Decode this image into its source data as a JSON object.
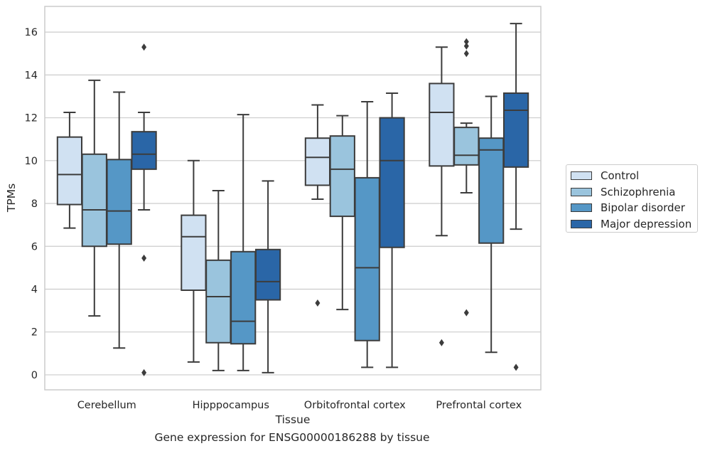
{
  "chart_data": {
    "type": "box",
    "caption": "Gene expression for ENSG00000186288 by tissue",
    "xlabel": "Tissue",
    "ylabel": "TPMs",
    "ylim": [
      -0.7,
      17.2
    ],
    "yticks": [
      0,
      2,
      4,
      6,
      8,
      10,
      12,
      14,
      16
    ],
    "grid": "horizontal",
    "legend_position": "right-outside",
    "categories": [
      "Cerebellum",
      "Hipppocampus",
      "Orbitofrontal cortex",
      "Prefrontal cortex"
    ],
    "series": [
      {
        "name": "Control",
        "color": "#d0e1f2",
        "boxes": [
          {
            "whislo": 6.85,
            "q1": 7.95,
            "med": 9.35,
            "q3": 11.1,
            "whishi": 12.25,
            "fliers": []
          },
          {
            "whislo": 0.6,
            "q1": 3.95,
            "med": 6.45,
            "q3": 7.45,
            "whishi": 10.0,
            "fliers": []
          },
          {
            "whislo": 8.2,
            "q1": 8.85,
            "med": 10.15,
            "q3": 11.05,
            "whishi": 12.6,
            "fliers": [
              3.35
            ]
          },
          {
            "whislo": 6.5,
            "q1": 9.75,
            "med": 12.25,
            "q3": 13.6,
            "whishi": 15.3,
            "fliers": [
              1.5
            ]
          }
        ]
      },
      {
        "name": "Schizophrenia",
        "color": "#9ac4dd",
        "boxes": [
          {
            "whislo": 2.75,
            "q1": 6.0,
            "med": 7.7,
            "q3": 10.3,
            "whishi": 13.75,
            "fliers": []
          },
          {
            "whislo": 0.2,
            "q1": 1.5,
            "med": 3.65,
            "q3": 5.35,
            "whishi": 8.6,
            "fliers": []
          },
          {
            "whislo": 3.05,
            "q1": 7.4,
            "med": 9.6,
            "q3": 11.15,
            "whishi": 12.1,
            "fliers": []
          },
          {
            "whislo": 8.5,
            "q1": 9.8,
            "med": 10.25,
            "q3": 11.55,
            "whishi": 11.75,
            "fliers": [
              2.9,
              15.0,
              15.35,
              15.55
            ]
          }
        ]
      },
      {
        "name": "Bipolar disorder",
        "color": "#5597c6",
        "boxes": [
          {
            "whislo": 1.25,
            "q1": 6.1,
            "med": 7.65,
            "q3": 10.05,
            "whishi": 13.2,
            "fliers": []
          },
          {
            "whislo": 0.2,
            "q1": 1.45,
            "med": 2.5,
            "q3": 5.75,
            "whishi": 12.15,
            "fliers": []
          },
          {
            "whislo": 0.35,
            "q1": 1.6,
            "med": 5.0,
            "q3": 9.2,
            "whishi": 12.75,
            "fliers": []
          },
          {
            "whislo": 1.05,
            "q1": 6.15,
            "med": 10.5,
            "q3": 11.05,
            "whishi": 13.0,
            "fliers": []
          }
        ]
      },
      {
        "name": "Major depression",
        "color": "#2a66a7",
        "boxes": [
          {
            "whislo": 7.7,
            "q1": 9.6,
            "med": 10.3,
            "q3": 11.35,
            "whishi": 12.25,
            "fliers": [
              5.45,
              15.3,
              0.1
            ]
          },
          {
            "whislo": 0.1,
            "q1": 3.5,
            "med": 4.35,
            "q3": 5.85,
            "whishi": 9.05,
            "fliers": []
          },
          {
            "whislo": 0.35,
            "q1": 5.95,
            "med": 10.0,
            "q3": 12.0,
            "whishi": 13.15,
            "fliers": []
          },
          {
            "whislo": 6.8,
            "q1": 9.7,
            "med": 12.35,
            "q3": 13.15,
            "whishi": 16.4,
            "fliers": [
              0.35
            ]
          }
        ]
      }
    ]
  }
}
